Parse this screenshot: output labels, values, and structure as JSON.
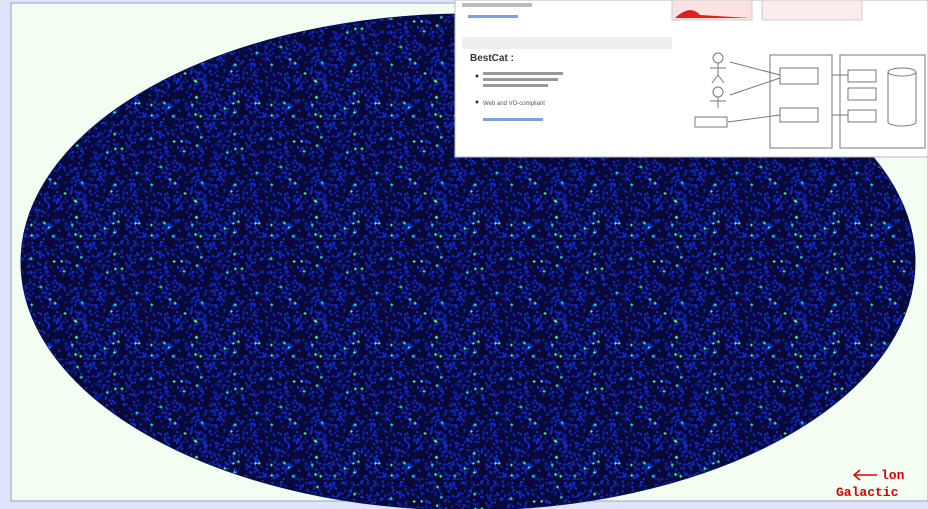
{
  "map": {
    "axis_label": "lon",
    "frame": "Galactic"
  },
  "overlay": {
    "heading": "BestCat :",
    "bullet": "Web and VO-compliant"
  }
}
